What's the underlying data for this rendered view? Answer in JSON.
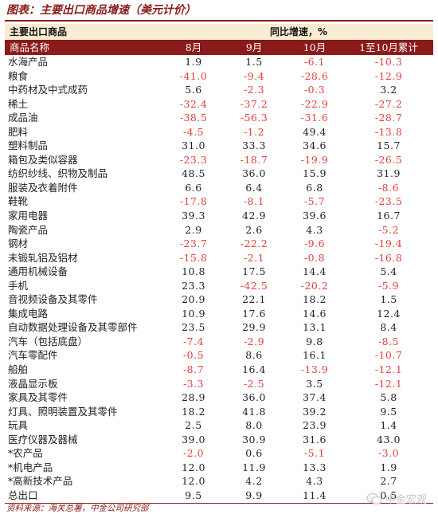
{
  "title": "图表：主要出口商品增速（美元计价）",
  "header": {
    "group_left": "主要出口商品",
    "group_right": "同比增速，%",
    "col_name": "商品名称",
    "cols": [
      "8月",
      "9月",
      "10月",
      "1至10月累计"
    ]
  },
  "rows": [
    {
      "name": "水海产品",
      "v": [
        "1.9",
        "1.5",
        "-6.1",
        "-10.3"
      ]
    },
    {
      "name": "粮食",
      "v": [
        "-41.0",
        "-9.4",
        "-28.6",
        "-12.9"
      ]
    },
    {
      "name": "中药材及中式成药",
      "v": [
        "5.6",
        "-2.3",
        "-0.3",
        "3.2"
      ]
    },
    {
      "name": "稀土",
      "v": [
        "-32.4",
        "-37.2",
        "-22.9",
        "-27.2"
      ]
    },
    {
      "name": "成品油",
      "v": [
        "-38.5",
        "-56.3",
        "-31.6",
        "-28.7"
      ]
    },
    {
      "name": "肥料",
      "v": [
        "-4.5",
        "-1.2",
        "49.4",
        "-13.8"
      ]
    },
    {
      "name": "塑料制品",
      "v": [
        "31.0",
        "33.3",
        "34.6",
        "15.7"
      ]
    },
    {
      "name": "箱包及类似容器",
      "v": [
        "-23.3",
        "-18.7",
        "-19.9",
        "-26.5"
      ]
    },
    {
      "name": "纺织纱线、织物及制品",
      "v": [
        "48.5",
        "36.0",
        "15.9",
        "31.9"
      ]
    },
    {
      "name": "服装及衣着附件",
      "v": [
        "6.6",
        "6.4",
        "6.8",
        "-8.6"
      ]
    },
    {
      "name": "鞋靴",
      "v": [
        "-17.8",
        "-8.1",
        "-5.7",
        "-23.5"
      ]
    },
    {
      "name": "家用电器",
      "v": [
        "39.3",
        "42.9",
        "39.6",
        "16.7"
      ]
    },
    {
      "name": "陶瓷产品",
      "v": [
        "2.9",
        "2.6",
        "4.3",
        "-5.2"
      ]
    },
    {
      "name": "钢材",
      "v": [
        "-23.7",
        "-22.2",
        "-9.6",
        "-19.4"
      ]
    },
    {
      "name": "未锻轧铝及铝材",
      "v": [
        "-15.8",
        "-2.1",
        "-0.8",
        "-16.8"
      ]
    },
    {
      "name": "通用机械设备",
      "v": [
        "10.8",
        "17.5",
        "14.4",
        "5.4"
      ]
    },
    {
      "name": "手机",
      "v": [
        "23.3",
        "-42.5",
        "-20.2",
        "-5.9"
      ]
    },
    {
      "name": "音视频设备及其零件",
      "v": [
        "20.9",
        "22.1",
        "18.2",
        "1.5"
      ]
    },
    {
      "name": "集成电路",
      "v": [
        "10.9",
        "17.6",
        "14.6",
        "12.4"
      ]
    },
    {
      "name": "自动数据处理设备及其零部件",
      "v": [
        "23.5",
        "29.9",
        "13.1",
        "8.4"
      ]
    },
    {
      "name": "汽车（包括底盘）",
      "v": [
        "-7.4",
        "-2.9",
        "9.8",
        "-8.5"
      ]
    },
    {
      "name": "汽车零配件",
      "v": [
        "-0.5",
        "8.6",
        "16.1",
        "-10.7"
      ]
    },
    {
      "name": "船舶",
      "v": [
        "-8.7",
        "16.4",
        "-13.9",
        "-12.1"
      ]
    },
    {
      "name": "液晶显示板",
      "v": [
        "-3.3",
        "-2.5",
        "3.5",
        "-12.1"
      ]
    },
    {
      "name": "家具及其零件",
      "v": [
        "28.9",
        "36.0",
        "37.4",
        "5.8"
      ]
    },
    {
      "name": "灯具、照明装置及其零件",
      "v": [
        "18.2",
        "41.8",
        "39.2",
        "9.5"
      ]
    },
    {
      "name": "玩具",
      "v": [
        "2.5",
        "8.0",
        "23.9",
        "1.4"
      ]
    },
    {
      "name": "医疗仪器及器械",
      "v": [
        "39.0",
        "30.9",
        "31.6",
        "43.0"
      ]
    },
    {
      "name": "*农产品",
      "v": [
        "-2.0",
        "0.6",
        "-5.1",
        "-3.0"
      ]
    },
    {
      "name": "*机电产品",
      "v": [
        "12.0",
        "11.9",
        "13.3",
        "1.9"
      ]
    },
    {
      "name": "*高新技术产品",
      "v": [
        "12.0",
        "4.2",
        "4.3",
        "2.7"
      ]
    },
    {
      "name": "总出口",
      "v": [
        "9.5",
        "9.9",
        "11.4",
        "0.5"
      ]
    }
  ],
  "source": "资料来源：海关总署，中金公司研究部",
  "watermark": "中金宏观",
  "colors": {
    "accent": "#8b1a1a",
    "header_band": "#f8edd2",
    "negative": "#e8403a"
  }
}
